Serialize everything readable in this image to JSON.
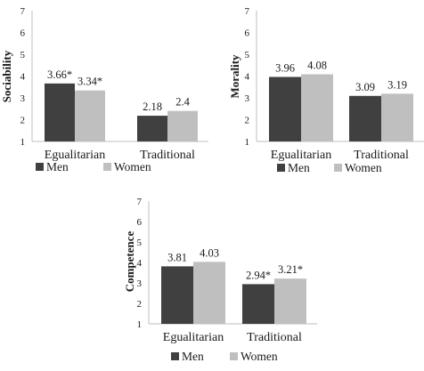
{
  "colors": {
    "men": "#404040",
    "women": "#bfbfbf"
  },
  "chart_data": [
    {
      "type": "bar",
      "ylabel": "Sociability",
      "ylim": [
        1,
        7
      ],
      "yticks": [
        "1",
        "2",
        "3",
        "4",
        "5",
        "6",
        "7"
      ],
      "categories": [
        "Egualitarian",
        "Traditional"
      ],
      "series": [
        {
          "name": "Men",
          "values": [
            3.66,
            2.18
          ],
          "labels": [
            "3.66*",
            "2.18"
          ]
        },
        {
          "name": "Women",
          "values": [
            3.34,
            2.4
          ],
          "labels": [
            "3.34*",
            "2.4"
          ]
        }
      ],
      "legend": "bottom"
    },
    {
      "type": "bar",
      "ylabel": "Morality",
      "ylim": [
        1,
        7
      ],
      "yticks": [
        "1",
        "2",
        "3",
        "4",
        "5",
        "6",
        "7"
      ],
      "categories": [
        "Egualitarian",
        "Traditional"
      ],
      "series": [
        {
          "name": "Men",
          "values": [
            3.96,
            3.09
          ],
          "labels": [
            "3.96",
            "3.09"
          ]
        },
        {
          "name": "Women",
          "values": [
            4.08,
            3.19
          ],
          "labels": [
            "4.08",
            "3.19"
          ]
        }
      ],
      "legend": "bottom"
    },
    {
      "type": "bar",
      "ylabel": "Competence",
      "ylim": [
        1,
        7
      ],
      "yticks": [
        "1",
        "2",
        "3",
        "4",
        "5",
        "6",
        "7"
      ],
      "categories": [
        "Egualitarian",
        "Traditional"
      ],
      "series": [
        {
          "name": "Men",
          "values": [
            3.81,
            2.94
          ],
          "labels": [
            "3.81",
            "2.94*"
          ]
        },
        {
          "name": "Women",
          "values": [
            4.03,
            3.21
          ],
          "labels": [
            "4.03",
            "3.21*"
          ]
        }
      ],
      "legend": "bottom"
    }
  ]
}
